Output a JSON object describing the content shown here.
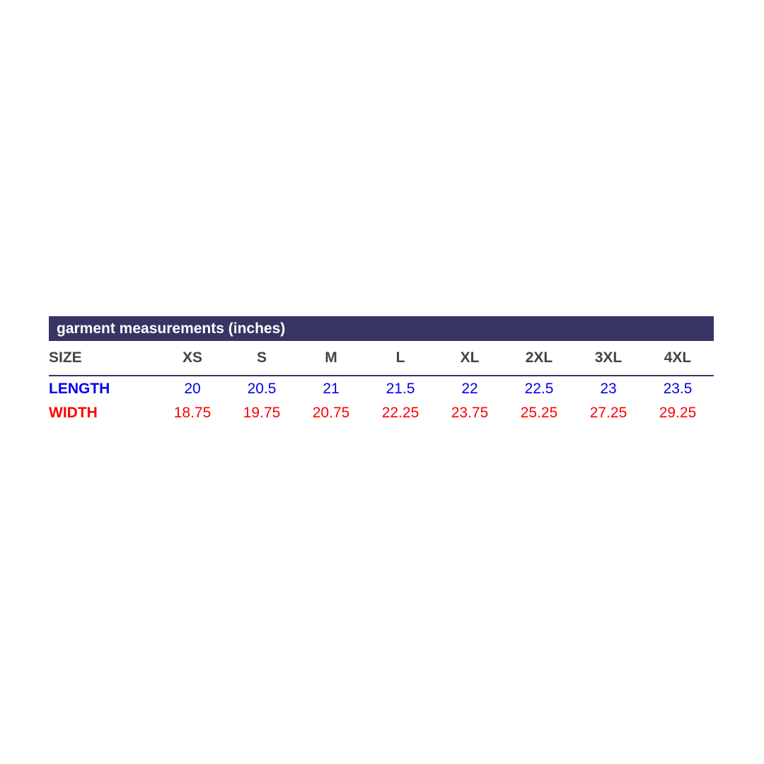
{
  "table": {
    "title": "garment measurements (inches)",
    "header": [
      "SIZE",
      "XS",
      "S",
      "M",
      "L",
      "XL",
      "2XL",
      "3XL",
      "4XL"
    ],
    "rows": [
      [
        "LENGTH",
        "20",
        "20.5",
        "21",
        "21.5",
        "22",
        "22.5",
        "23",
        "23.5"
      ],
      [
        "WIDTH",
        "18.75",
        "19.75",
        "20.75",
        "22.25",
        "23.75",
        "25.25",
        "27.25",
        "29.25"
      ]
    ]
  }
}
